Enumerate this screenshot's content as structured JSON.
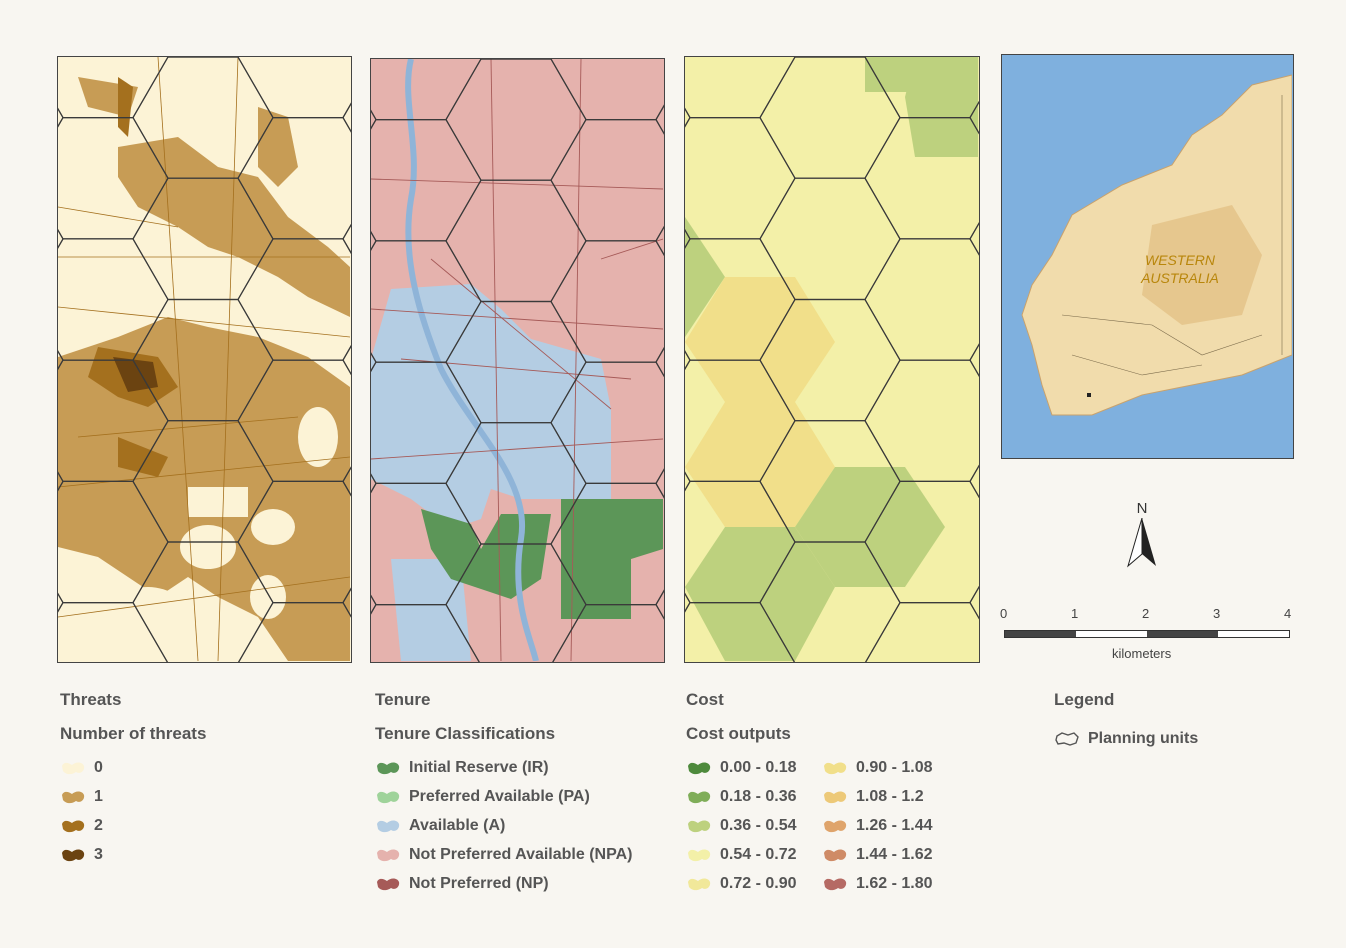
{
  "panels": {
    "threats": {
      "title": "Threats",
      "subtitle": "Number of threats",
      "classes": [
        {
          "label": "0",
          "color": "#fcf3d6"
        },
        {
          "label": "1",
          "color": "#c79c55"
        },
        {
          "label": "2",
          "color": "#a4701e"
        },
        {
          "label": "3",
          "color": "#6b4311"
        }
      ]
    },
    "tenure": {
      "title": "Tenure",
      "subtitle": "Tenure Classifications",
      "classes": [
        {
          "label": "Initial Reserve (IR)",
          "color": "#5c9658"
        },
        {
          "label": "Preferred Available (PA)",
          "color": "#9fd39a"
        },
        {
          "label": "Available (A)",
          "color": "#b4cde3"
        },
        {
          "label": "Not Preferred Available (NPA)",
          "color": "#e5b2ad"
        },
        {
          "label": "Not Preferred (NP)",
          "color": "#a65a58"
        }
      ]
    },
    "cost": {
      "title": "Cost",
      "subtitle": "Cost outputs",
      "classes": [
        {
          "label": "0.00 - 0.18",
          "color": "#4e8a3c"
        },
        {
          "label": "0.90 - 1.08",
          "color": "#f1df8a"
        },
        {
          "label": "0.18 - 0.36",
          "color": "#7fad58"
        },
        {
          "label": "1.08 - 1.2",
          "color": "#edc978"
        },
        {
          "label": "0.36 - 0.54",
          "color": "#bdd17e"
        },
        {
          "label": "1.26 - 1.44",
          "color": "#dfa46b"
        },
        {
          "label": "0.54 - 0.72",
          "color": "#f3f0a8"
        },
        {
          "label": "1.44 - 1.62",
          "color": "#cf8b66"
        },
        {
          "label": "0.72 - 0.90",
          "color": "#f1e89a"
        },
        {
          "label": "1.62 - 1.80",
          "color": "#b56a64"
        }
      ]
    }
  },
  "inset": {
    "label_line1": "WESTERN",
    "label_line2": "AUSTRALIA"
  },
  "north_arrow": {
    "label": "N"
  },
  "scale_bar": {
    "ticks": [
      "0",
      "1",
      "2",
      "3",
      "4"
    ],
    "unit": "kilometers"
  },
  "legend": {
    "title": "Legend",
    "item": "Planning units"
  }
}
